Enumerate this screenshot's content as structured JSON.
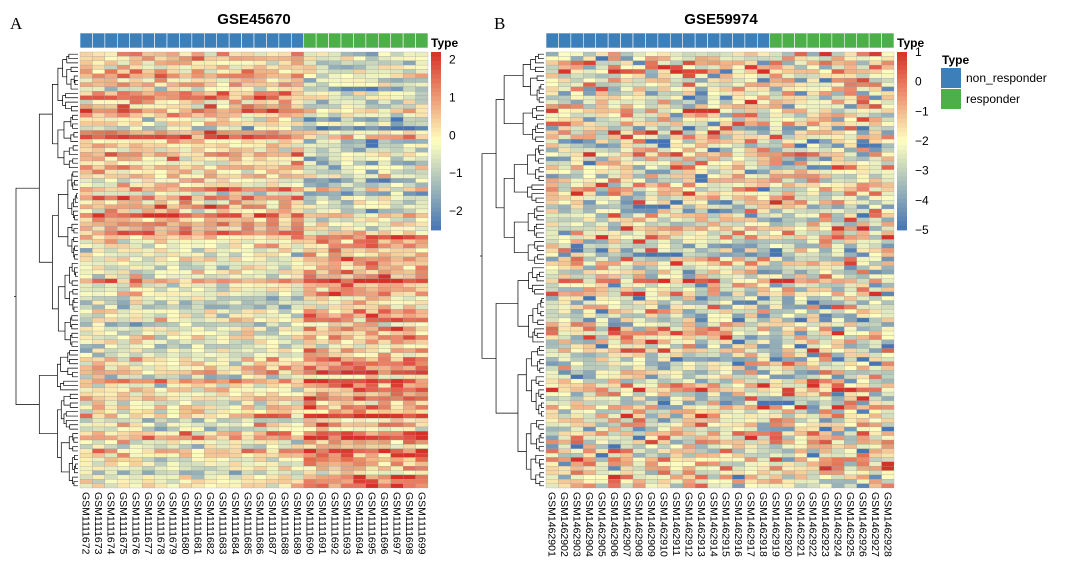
{
  "chart_data": [
    {
      "type": "heatmap",
      "panel_label": "A",
      "title": "GSE45670",
      "annotation_title": "Type",
      "n_rows": 100,
      "colorbar_ticks": [
        2,
        1,
        0,
        -1,
        -2
      ],
      "color_range": [
        -2.5,
        2.2
      ],
      "columns": [
        {
          "name": "GSM1111672",
          "type": "non_responder"
        },
        {
          "name": "GSM1111673",
          "type": "non_responder"
        },
        {
          "name": "GSM1111674",
          "type": "non_responder"
        },
        {
          "name": "GSM1111675",
          "type": "non_responder"
        },
        {
          "name": "GSM1111676",
          "type": "non_responder"
        },
        {
          "name": "GSM1111677",
          "type": "non_responder"
        },
        {
          "name": "GSM1111678",
          "type": "non_responder"
        },
        {
          "name": "GSM1111679",
          "type": "non_responder"
        },
        {
          "name": "GSM1111680",
          "type": "non_responder"
        },
        {
          "name": "GSM1111681",
          "type": "non_responder"
        },
        {
          "name": "GSM1111682",
          "type": "non_responder"
        },
        {
          "name": "GSM1111683",
          "type": "non_responder"
        },
        {
          "name": "GSM1111684",
          "type": "non_responder"
        },
        {
          "name": "GSM1111685",
          "type": "non_responder"
        },
        {
          "name": "GSM1111686",
          "type": "non_responder"
        },
        {
          "name": "GSM1111687",
          "type": "non_responder"
        },
        {
          "name": "GSM1111688",
          "type": "non_responder"
        },
        {
          "name": "GSM1111689",
          "type": "non_responder"
        },
        {
          "name": "GSM1111690",
          "type": "responder"
        },
        {
          "name": "GSM1111691",
          "type": "responder"
        },
        {
          "name": "GSM1111692",
          "type": "responder"
        },
        {
          "name": "GSM1111693",
          "type": "responder"
        },
        {
          "name": "GSM1111694",
          "type": "responder"
        },
        {
          "name": "GSM1111695",
          "type": "responder"
        },
        {
          "name": "GSM1111696",
          "type": "responder"
        },
        {
          "name": "GSM1111697",
          "type": "responder"
        },
        {
          "name": "GSM1111698",
          "type": "responder"
        },
        {
          "name": "GSM1111699",
          "type": "responder"
        }
      ]
    },
    {
      "type": "heatmap",
      "panel_label": "B",
      "title": "GSE59974",
      "annotation_title": "Type",
      "n_rows": 100,
      "colorbar_ticks": [
        1,
        0,
        -1,
        -2,
        -3,
        -4,
        -5
      ],
      "color_range": [
        -5,
        1
      ],
      "columns": [
        {
          "name": "GSM1462901",
          "type": "non_responder"
        },
        {
          "name": "GSM1462902",
          "type": "non_responder"
        },
        {
          "name": "GSM1462903",
          "type": "non_responder"
        },
        {
          "name": "GSM1462904",
          "type": "non_responder"
        },
        {
          "name": "GSM1462905",
          "type": "non_responder"
        },
        {
          "name": "GSM1462906",
          "type": "non_responder"
        },
        {
          "name": "GSM1462907",
          "type": "non_responder"
        },
        {
          "name": "GSM1462908",
          "type": "non_responder"
        },
        {
          "name": "GSM1462909",
          "type": "non_responder"
        },
        {
          "name": "GSM1462910",
          "type": "non_responder"
        },
        {
          "name": "GSM1462911",
          "type": "non_responder"
        },
        {
          "name": "GSM1462912",
          "type": "non_responder"
        },
        {
          "name": "GSM1462913",
          "type": "non_responder"
        },
        {
          "name": "GSM1462914",
          "type": "non_responder"
        },
        {
          "name": "GSM1462915",
          "type": "non_responder"
        },
        {
          "name": "GSM1462916",
          "type": "non_responder"
        },
        {
          "name": "GSM1462917",
          "type": "non_responder"
        },
        {
          "name": "GSM1462918",
          "type": "non_responder"
        },
        {
          "name": "GSM1462919",
          "type": "responder"
        },
        {
          "name": "GSM1462920",
          "type": "responder"
        },
        {
          "name": "GSM1462921",
          "type": "responder"
        },
        {
          "name": "GSM1462922",
          "type": "responder"
        },
        {
          "name": "GSM1462923",
          "type": "responder"
        },
        {
          "name": "GSM1462924",
          "type": "responder"
        },
        {
          "name": "GSM1462925",
          "type": "responder"
        },
        {
          "name": "GSM1462926",
          "type": "responder"
        },
        {
          "name": "GSM1462927",
          "type": "responder"
        },
        {
          "name": "GSM1462928",
          "type": "responder"
        }
      ]
    }
  ],
  "legend": {
    "title": "Type",
    "items": [
      {
        "label": "non_responder",
        "color": "#3C7FB9"
      },
      {
        "label": "responder",
        "color": "#4DAF4A"
      }
    ]
  },
  "colors": {
    "low": "#4575B4",
    "mid": "#FFFFBF",
    "high": "#D73027"
  }
}
